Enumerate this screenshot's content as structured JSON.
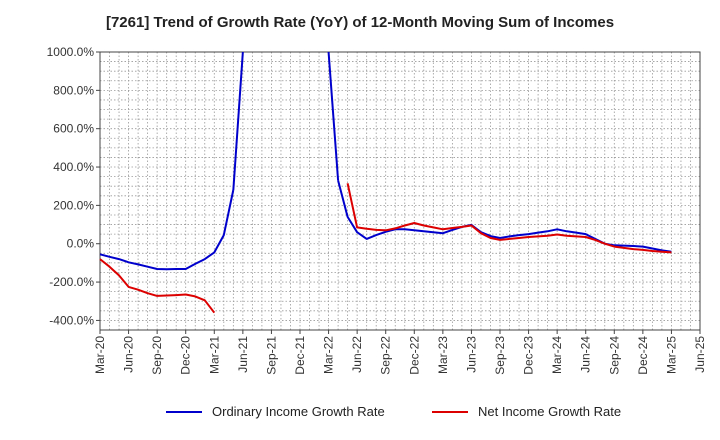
{
  "chart_data": {
    "type": "line",
    "title": "[7261]  Trend of Growth Rate (YoY) of 12-Month Moving Sum of Incomes",
    "xlabel": "",
    "ylabel": "",
    "x_ticks": [
      "Mar-20",
      "Jun-20",
      "Sep-20",
      "Dec-20",
      "Mar-21",
      "Jun-21",
      "Sep-21",
      "Dec-21",
      "Mar-22",
      "Jun-22",
      "Sep-22",
      "Dec-22",
      "Mar-23",
      "Jun-23",
      "Sep-23",
      "Dec-23",
      "Mar-24",
      "Jun-24",
      "Sep-24",
      "Dec-24",
      "Mar-25",
      "Jun-25"
    ],
    "y_ticks": [
      "1000.0%",
      "800.0%",
      "600.0%",
      "400.0%",
      "200.0%",
      "0.0%",
      "-200.0%",
      "-400.0%"
    ],
    "ylim": [
      -450,
      1000
    ],
    "grid": true,
    "legend_position": "bottom",
    "series": [
      {
        "name": "Ordinary Income Growth Rate",
        "color": "#0000cc",
        "points": [
          [
            "Mar-20",
            -55
          ],
          [
            "Apr-20",
            -68
          ],
          [
            "May-20",
            -80
          ],
          [
            "Jun-20",
            -97
          ],
          [
            "Jul-20",
            -108
          ],
          [
            "Aug-20",
            -120
          ],
          [
            "Sep-20",
            -132
          ],
          [
            "Oct-20",
            -133
          ],
          [
            "Nov-20",
            -132
          ],
          [
            "Dec-20",
            -132
          ],
          [
            "Jan-21",
            -105
          ],
          [
            "Feb-21",
            -80
          ],
          [
            "Mar-21",
            -45
          ],
          [
            "Apr-21",
            45
          ],
          [
            "May-21",
            280
          ],
          [
            "Jun-21",
            null
          ],
          [
            "Jul-21",
            null
          ],
          [
            "Aug-21",
            null
          ],
          [
            "Sep-21",
            null
          ],
          [
            "Oct-21",
            null
          ],
          [
            "Nov-21",
            null
          ],
          [
            "Dec-21",
            null
          ],
          [
            "Jan-22",
            null
          ],
          [
            "Feb-22",
            null
          ],
          [
            "Mar-22",
            null
          ],
          [
            "Apr-22",
            330
          ],
          [
            "May-22",
            140
          ],
          [
            "Jun-22",
            60
          ],
          [
            "Jul-22",
            25
          ],
          [
            "Aug-22",
            45
          ],
          [
            "Sep-22",
            62
          ],
          [
            "Oct-22",
            75
          ],
          [
            "Nov-22",
            75
          ],
          [
            "Dec-22",
            70
          ],
          [
            "Jan-23",
            65
          ],
          [
            "Feb-23",
            60
          ],
          [
            "Mar-23",
            55
          ],
          [
            "Apr-23",
            72
          ],
          [
            "May-23",
            88
          ],
          [
            "Jun-23",
            98
          ],
          [
            "Jul-23",
            60
          ],
          [
            "Aug-23",
            40
          ],
          [
            "Sep-23",
            30
          ],
          [
            "Oct-23",
            38
          ],
          [
            "Nov-23",
            45
          ],
          [
            "Dec-23",
            50
          ],
          [
            "Jan-24",
            58
          ],
          [
            "Feb-24",
            65
          ],
          [
            "Mar-24",
            75
          ],
          [
            "Apr-24",
            65
          ],
          [
            "May-24",
            58
          ],
          [
            "Jun-24",
            50
          ],
          [
            "Jul-24",
            25
          ],
          [
            "Aug-24",
            0
          ],
          [
            "Sep-24",
            -8
          ],
          [
            "Oct-24",
            -10
          ],
          [
            "Nov-24",
            -12
          ],
          [
            "Dec-24",
            -15
          ],
          [
            "Jan-25",
            -25
          ],
          [
            "Feb-25",
            -35
          ],
          [
            "Mar-25",
            -42
          ]
        ],
        "clipped_top": [
          [
            "May-21",
            280,
            "Jun-21"
          ],
          [
            "Apr-22",
            330,
            "Mar-22"
          ]
        ]
      },
      {
        "name": "Net Income Growth Rate",
        "color": "#dd0000",
        "points": [
          [
            "Mar-20",
            -80
          ],
          [
            "Apr-20",
            -120
          ],
          [
            "May-20",
            -165
          ],
          [
            "Jun-20",
            -225
          ],
          [
            "Jul-20",
            -240
          ],
          [
            "Aug-20",
            -258
          ],
          [
            "Sep-20",
            -272
          ],
          [
            "Oct-20",
            -270
          ],
          [
            "Nov-20",
            -268
          ],
          [
            "Dec-20",
            -265
          ],
          [
            "Jan-21",
            -275
          ],
          [
            "Feb-21",
            -295
          ],
          [
            "Mar-21",
            -360
          ],
          [
            "Apr-21",
            null
          ],
          [
            "May-21",
            null
          ],
          [
            "Jun-21",
            null
          ],
          [
            "Jul-21",
            null
          ],
          [
            "Aug-21",
            null
          ],
          [
            "Sep-21",
            null
          ],
          [
            "Oct-21",
            null
          ],
          [
            "Nov-21",
            null
          ],
          [
            "Dec-21",
            null
          ],
          [
            "Jan-22",
            null
          ],
          [
            "Feb-22",
            null
          ],
          [
            "Mar-22",
            null
          ],
          [
            "Apr-22",
            null
          ],
          [
            "May-22",
            315
          ],
          [
            "Jun-22",
            85
          ],
          [
            "Jul-22",
            78
          ],
          [
            "Aug-22",
            72
          ],
          [
            "Sep-22",
            70
          ],
          [
            "Oct-22",
            80
          ],
          [
            "Nov-22",
            95
          ],
          [
            "Dec-22",
            108
          ],
          [
            "Jan-23",
            95
          ],
          [
            "Feb-23",
            85
          ],
          [
            "Mar-23",
            75
          ],
          [
            "Apr-23",
            82
          ],
          [
            "May-23",
            88
          ],
          [
            "Jun-23",
            95
          ],
          [
            "Jul-23",
            55
          ],
          [
            "Aug-23",
            30
          ],
          [
            "Sep-23",
            20
          ],
          [
            "Oct-23",
            25
          ],
          [
            "Nov-23",
            30
          ],
          [
            "Dec-23",
            35
          ],
          [
            "Jan-24",
            38
          ],
          [
            "Feb-24",
            42
          ],
          [
            "Mar-24",
            48
          ],
          [
            "Apr-24",
            42
          ],
          [
            "May-24",
            38
          ],
          [
            "Jun-24",
            35
          ],
          [
            "Jul-24",
            20
          ],
          [
            "Aug-24",
            0
          ],
          [
            "Sep-24",
            -15
          ],
          [
            "Oct-24",
            -22
          ],
          [
            "Nov-24",
            -28
          ],
          [
            "Dec-24",
            -32
          ],
          [
            "Jan-25",
            -38
          ],
          [
            "Feb-25",
            -42
          ],
          [
            "Mar-25",
            -45
          ]
        ]
      }
    ]
  }
}
